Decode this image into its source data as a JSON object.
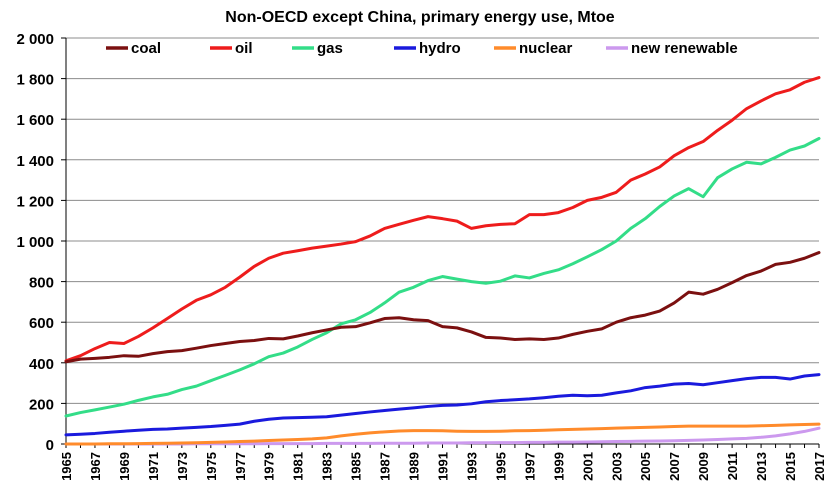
{
  "chart_data": {
    "type": "line",
    "title": "Non-OECD except China, primary energy use, Mtoe",
    "xlabel": "",
    "ylabel": "",
    "ylim": [
      0,
      2000
    ],
    "yticks": [
      0,
      200,
      400,
      600,
      800,
      1000,
      1200,
      1400,
      1600,
      1800,
      2000
    ],
    "ytick_labels": [
      "0",
      "200",
      "400",
      "600",
      "800",
      "1 000",
      "1 200",
      "1 400",
      "1 600",
      "1 800",
      "2 000"
    ],
    "xtick_labels": [
      "1965",
      "1967",
      "1969",
      "1971",
      "1973",
      "1975",
      "1977",
      "1979",
      "1981",
      "1983",
      "1985",
      "1987",
      "1989",
      "1991",
      "1993",
      "1995",
      "1997",
      "1999",
      "2001",
      "2003",
      "2005",
      "2007",
      "2009",
      "2011",
      "2013",
      "2015",
      "2017"
    ],
    "grid": true,
    "legend_position": "top",
    "x": [
      1965,
      1966,
      1967,
      1968,
      1969,
      1970,
      1971,
      1972,
      1973,
      1974,
      1975,
      1976,
      1977,
      1978,
      1979,
      1980,
      1981,
      1982,
      1983,
      1984,
      1985,
      1986,
      1987,
      1988,
      1989,
      1990,
      1991,
      1992,
      1993,
      1994,
      1995,
      1996,
      1997,
      1998,
      1999,
      2000,
      2001,
      2002,
      2003,
      2004,
      2005,
      2006,
      2007,
      2008,
      2009,
      2010,
      2011,
      2012,
      2013,
      2014,
      2015,
      2016,
      2017
    ],
    "series": [
      {
        "name": "coal",
        "color": "#7b1010",
        "values": [
          405,
          418,
          422,
          427,
          435,
          432,
          445,
          455,
          460,
          472,
          485,
          495,
          505,
          510,
          520,
          518,
          532,
          548,
          562,
          575,
          578,
          597,
          618,
          622,
          612,
          608,
          578,
          572,
          552,
          525,
          522,
          515,
          518,
          515,
          522,
          540,
          555,
          567,
          600,
          622,
          635,
          655,
          695,
          748,
          738,
          762,
          795,
          830,
          852,
          885,
          895,
          915,
          943
        ]
      },
      {
        "name": "oil",
        "color": "#ee1c1c",
        "values": [
          410,
          435,
          470,
          500,
          495,
          530,
          572,
          618,
          665,
          708,
          735,
          772,
          822,
          875,
          915,
          940,
          952,
          965,
          975,
          985,
          997,
          1025,
          1062,
          1082,
          1102,
          1120,
          1110,
          1098,
          1062,
          1075,
          1082,
          1085,
          1130,
          1130,
          1140,
          1165,
          1200,
          1215,
          1240,
          1300,
          1330,
          1365,
          1420,
          1460,
          1490,
          1545,
          1595,
          1652,
          1690,
          1725,
          1745,
          1782,
          1805
        ]
      },
      {
        "name": "gas",
        "color": "#33dd88",
        "values": [
          138,
          155,
          168,
          182,
          196,
          215,
          232,
          245,
          268,
          285,
          312,
          338,
          365,
          395,
          430,
          448,
          478,
          515,
          548,
          592,
          612,
          648,
          695,
          748,
          772,
          805,
          825,
          812,
          800,
          792,
          802,
          828,
          818,
          840,
          858,
          888,
          922,
          958,
          1000,
          1062,
          1110,
          1170,
          1222,
          1258,
          1218,
          1312,
          1355,
          1388,
          1380,
          1412,
          1448,
          1468,
          1505
        ]
      },
      {
        "name": "hydro",
        "color": "#1a1add",
        "values": [
          45,
          48,
          52,
          58,
          63,
          68,
          72,
          74,
          78,
          82,
          86,
          92,
          98,
          112,
          122,
          128,
          130,
          132,
          134,
          142,
          150,
          158,
          165,
          172,
          178,
          185,
          190,
          192,
          198,
          208,
          214,
          218,
          222,
          228,
          235,
          240,
          238,
          240,
          252,
          262,
          278,
          285,
          295,
          298,
          292,
          302,
          312,
          322,
          328,
          328,
          320,
          335,
          342
        ]
      },
      {
        "name": "nuclear",
        "color": "#ff8b2b",
        "values": [
          0,
          0,
          0,
          1,
          1,
          2,
          3,
          4,
          5,
          6,
          8,
          10,
          12,
          14,
          17,
          20,
          22,
          25,
          30,
          40,
          48,
          55,
          60,
          64,
          66,
          66,
          65,
          63,
          62,
          62,
          63,
          65,
          66,
          68,
          70,
          72,
          74,
          76,
          78,
          80,
          82,
          84,
          86,
          88,
          88,
          88,
          88,
          88,
          90,
          92,
          94,
          96,
          98
        ]
      },
      {
        "name": "new renewable",
        "color": "#cc99ee",
        "values": [
          0,
          0,
          0,
          0,
          0,
          0,
          0,
          0,
          0,
          1,
          1,
          1,
          1,
          1,
          2,
          2,
          2,
          2,
          3,
          3,
          3,
          3,
          4,
          4,
          4,
          5,
          5,
          5,
          6,
          6,
          7,
          7,
          8,
          8,
          9,
          9,
          10,
          11,
          12,
          13,
          14,
          15,
          16,
          18,
          20,
          22,
          25,
          28,
          33,
          40,
          50,
          62,
          78
        ]
      }
    ]
  }
}
